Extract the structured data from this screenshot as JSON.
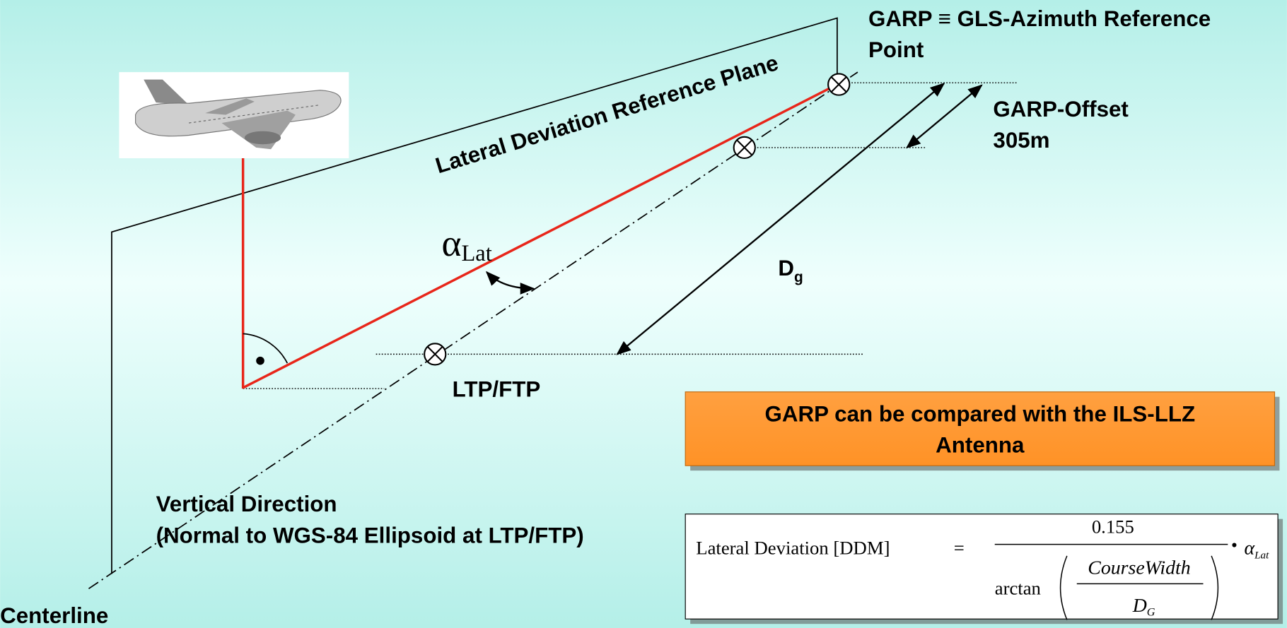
{
  "diagram": {
    "plane_label": "Lateral Deviation Reference Plane",
    "garp": [
      "GARP ≡ GLS-Azimuth Reference",
      "Point"
    ],
    "garp_offset": [
      "GARP-Offset",
      "305m"
    ],
    "alpha": {
      "symbol": "α",
      "subscript": "Lat"
    },
    "distance": {
      "symbol": "D",
      "subscript": "g"
    },
    "ltp": "LTP/FTP",
    "vertical": [
      "Vertical Direction",
      "(Normal to WGS-84 Ellipsoid at LTP/FTP)"
    ],
    "centerline": "Centerline",
    "note": [
      "GARP can be compared with the ILS-LLZ",
      "Antenna"
    ],
    "formula": {
      "lhs": "Lateral Deviation [DDM]",
      "equals": "=",
      "numerator": "0.155",
      "function": "arctan",
      "inner_numerator": "CourseWidth",
      "inner_denominator": {
        "symbol": "D",
        "subscript": "G"
      },
      "operator": "•",
      "factor": {
        "symbol": "α",
        "subscript": "Lat"
      }
    }
  }
}
